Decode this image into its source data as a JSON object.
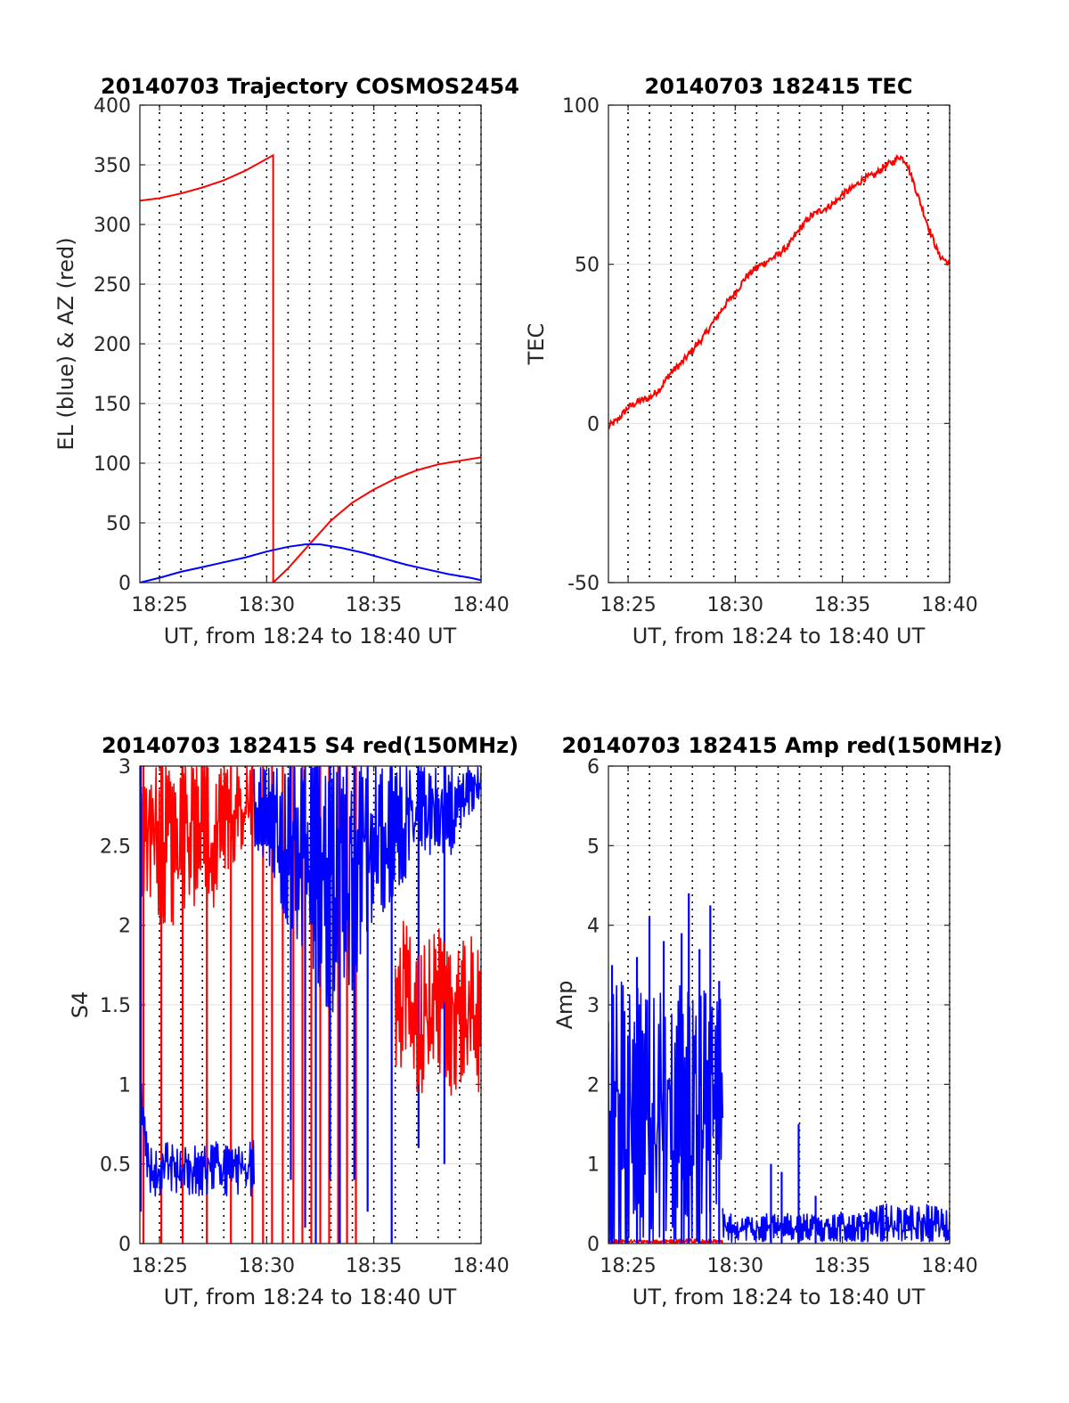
{
  "colors": {
    "red": "#ff0000",
    "blue": "#0000ff",
    "axis": "#262626",
    "grid": "#dedede"
  },
  "chart_data": [
    {
      "type": "line",
      "title": "20140703 Trajectory COSMOS2454",
      "xlabel": "UT, from 18:24 to 18:40 UT",
      "ylabel": "EL (blue) & AZ (red)",
      "xlim": [
        18.4014,
        18.6667
      ],
      "ylim": [
        0,
        400
      ],
      "x_ticks": [
        18.4167,
        18.5,
        18.5833,
        18.6667
      ],
      "x_tick_labels": [
        "18:25",
        "18:30",
        "18:35",
        "18:40"
      ],
      "y_ticks": [
        0,
        50,
        100,
        150,
        200,
        250,
        300,
        350,
        400
      ],
      "y_tick_labels": [
        "0",
        "50",
        "100",
        "150",
        "200",
        "250",
        "300",
        "350",
        "400"
      ],
      "grid": {
        "x": "dotted",
        "y": "solid"
      },
      "series": [
        {
          "color": "#ff0000",
          "style": "smooth",
          "x": [
            18.4014,
            18.4167,
            18.4333,
            18.45,
            18.4667,
            18.4833,
            18.505,
            18.5051,
            18.5167,
            18.5333,
            18.55,
            18.5667,
            18.5833,
            18.6,
            18.6167,
            18.6333,
            18.65,
            18.6667
          ],
          "y": [
            320,
            322,
            326,
            331,
            337,
            345,
            358,
            0,
            12,
            32,
            52,
            67,
            78,
            87,
            94,
            99,
            102,
            105
          ]
        },
        {
          "color": "#0000ff",
          "style": "smooth",
          "x": [
            18.4014,
            18.4167,
            18.4333,
            18.45,
            18.4667,
            18.4833,
            18.5,
            18.5167,
            18.53,
            18.5417,
            18.5583,
            18.575,
            18.5917,
            18.6083,
            18.625,
            18.6417,
            18.6583,
            18.6667
          ],
          "y": [
            0,
            4,
            9,
            13,
            17,
            21,
            26,
            30,
            32,
            32,
            29,
            25,
            20,
            15,
            11,
            7,
            4,
            2
          ]
        }
      ]
    },
    {
      "type": "line",
      "title": "20140703 182415 TEC",
      "xlabel": "UT, from 18:24 to 18:40 UT",
      "ylabel": "TEC",
      "xlim": [
        18.4014,
        18.6667
      ],
      "ylim": [
        -50,
        100
      ],
      "x_ticks": [
        18.4167,
        18.5,
        18.5833,
        18.6667
      ],
      "x_tick_labels": [
        "18:25",
        "18:30",
        "18:35",
        "18:40"
      ],
      "y_ticks": [
        -50,
        0,
        50,
        100
      ],
      "y_tick_labels": [
        "-50",
        "0",
        "50",
        "100"
      ],
      "grid": {
        "x": "dotted",
        "y": "solid"
      },
      "series": [
        {
          "color": "#ff0000",
          "style": "noisy",
          "x": [
            18.4014,
            18.4083,
            18.4167,
            18.425,
            18.4333,
            18.4417,
            18.45,
            18.4583,
            18.4667,
            18.475,
            18.4833,
            18.4917,
            18.5,
            18.5083,
            18.5167,
            18.525,
            18.5333,
            18.5417,
            18.55,
            18.5583,
            18.5667,
            18.5722,
            18.5792,
            18.5833,
            18.5917,
            18.6,
            18.6083,
            18.6167,
            18.6222,
            18.6278,
            18.6333,
            18.6417,
            18.65,
            18.6583,
            18.6667
          ],
          "y": [
            -1,
            1,
            5,
            7,
            8,
            11,
            16,
            19,
            23,
            27,
            32,
            37,
            41,
            46,
            49,
            51,
            53,
            56,
            61,
            65,
            67,
            68,
            70,
            72,
            74,
            77,
            78,
            81,
            82,
            84,
            82,
            72,
            62,
            53,
            50
          ]
        }
      ]
    },
    {
      "type": "line",
      "title": "20140703 182415 S4 red(150MHz)",
      "xlabel": "UT, from 18:24 to 18:40 UT",
      "ylabel": "S4",
      "xlim": [
        18.4014,
        18.6667
      ],
      "ylim": [
        0,
        3
      ],
      "x_ticks": [
        18.4167,
        18.5,
        18.5833,
        18.6667
      ],
      "x_tick_labels": [
        "18:25",
        "18:30",
        "18:35",
        "18:40"
      ],
      "y_ticks": [
        0,
        0.5,
        1,
        1.5,
        2,
        2.5,
        3
      ],
      "y_tick_labels": [
        "0",
        "0.5",
        "1",
        "1.5",
        "2",
        "2.5",
        "3"
      ],
      "grid": {
        "x": "dotted",
        "y": "solid"
      },
      "series": [
        {
          "color": "#ff0000",
          "style": "band",
          "x": [
            18.4014,
            18.4083,
            18.4167,
            18.425,
            18.4333,
            18.4417,
            18.45,
            18.4583,
            18.4667,
            18.475,
            18.4833,
            18.4903
          ],
          "lo": [
            2.2,
            2.1,
            2.0,
            2.0,
            1.9,
            2.1,
            2.2,
            2.1,
            2.3,
            2.4,
            2.5,
            2.6
          ],
          "hi": [
            3,
            3,
            3,
            3,
            3,
            3,
            3,
            3,
            3,
            3,
            3,
            3
          ]
        },
        {
          "color": "#ff0000",
          "style": "spikes",
          "x": [
            18.4042,
            18.4181,
            18.4347,
            18.4535,
            18.4722,
            18.4889,
            18.4972,
            18.5042,
            18.5125,
            18.5208,
            18.5278,
            18.5347,
            18.5417,
            18.5486,
            18.5556,
            18.5625,
            18.5694
          ],
          "lo": [
            0,
            0,
            0,
            0,
            0,
            0,
            0,
            0,
            0,
            0,
            0,
            0,
            0,
            0,
            0,
            0,
            0
          ],
          "hi": [
            3,
            3,
            3,
            3,
            3,
            3,
            3,
            3,
            3,
            3,
            3,
            3,
            3,
            3,
            3,
            3,
            3
          ]
        },
        {
          "color": "#0000ff",
          "style": "band",
          "x": [
            18.4014,
            18.4083,
            18.4167,
            18.425,
            18.4333,
            18.4417,
            18.45,
            18.4583,
            18.4667,
            18.475,
            18.4833,
            18.4903
          ],
          "lo": [
            0.9,
            0.3,
            0.3,
            0.3,
            0.32,
            0.3,
            0.3,
            0.32,
            0.3,
            0.3,
            0.3,
            0.3
          ],
          "hi": [
            1.1,
            0.6,
            0.6,
            0.65,
            0.6,
            0.62,
            0.6,
            0.65,
            0.62,
            0.6,
            0.62,
            0.65
          ]
        },
        {
          "color": "#0000ff",
          "style": "band",
          "x": [
            18.4903,
            18.5,
            18.5083,
            18.5167,
            18.525,
            18.5333,
            18.5417,
            18.55,
            18.5583,
            18.5667,
            18.575,
            18.5833,
            18.5917,
            18.6,
            18.6083,
            18.6167,
            18.625,
            18.6333,
            18.6417,
            18.65,
            18.6583,
            18.6667
          ],
          "lo": [
            2.5,
            2.4,
            2.2,
            2.0,
            1.9,
            1.8,
            1.6,
            1.4,
            1.7,
            1.5,
            1.9,
            2.0,
            2.1,
            2.2,
            2.3,
            2.4,
            2.3,
            2.5,
            2.4,
            2.6,
            2.7,
            2.8
          ],
          "hi": [
            3,
            3,
            3,
            3,
            3,
            3,
            3,
            3,
            3,
            3,
            3,
            3,
            3,
            3,
            3,
            3,
            3,
            3,
            3,
            3,
            3,
            3
          ]
        },
        {
          "color": "#0000ff",
          "style": "spikes",
          "x": [
            18.4021,
            18.5188,
            18.5299,
            18.5382,
            18.5493,
            18.5569,
            18.5681,
            18.5785,
            18.5972,
            18.6181,
            18.6382
          ],
          "lo": [
            0.2,
            0.4,
            0.1,
            0.0,
            0.4,
            0.0,
            0.4,
            0.2,
            0.0,
            0.6,
            0.5
          ],
          "hi": [
            3,
            3,
            3,
            3,
            3,
            3,
            3,
            3,
            3,
            3,
            3
          ]
        },
        {
          "color": "#ff0000",
          "style": "band",
          "x": [
            18.6,
            18.6083,
            18.6167,
            18.625,
            18.6333,
            18.6417,
            18.65,
            18.6583,
            18.6667
          ],
          "lo": [
            1.0,
            1.2,
            0.9,
            1.0,
            1.1,
            0.9,
            1.0,
            1.1,
            0.9
          ],
          "hi": [
            1.9,
            2.1,
            1.8,
            1.9,
            2.0,
            1.8,
            1.9,
            2.0,
            1.8
          ]
        }
      ]
    },
    {
      "type": "line",
      "title": "20140703 182415 Amp red(150MHz)",
      "xlabel": "UT, from 18:24 to 18:40 UT",
      "ylabel": "Amp",
      "xlim": [
        18.4014,
        18.6667
      ],
      "ylim": [
        0,
        6
      ],
      "x_ticks": [
        18.4167,
        18.5,
        18.5833,
        18.6667
      ],
      "x_tick_labels": [
        "18:25",
        "18:30",
        "18:35",
        "18:40"
      ],
      "y_ticks": [
        0,
        1,
        2,
        3,
        4,
        5,
        6
      ],
      "y_tick_labels": [
        "0",
        "1",
        "2",
        "3",
        "4",
        "5",
        "6"
      ],
      "grid": {
        "x": "dotted",
        "y": "solid"
      },
      "series": [
        {
          "color": "#ff0000",
          "style": "band",
          "x": [
            18.4014,
            18.4167,
            18.4333,
            18.45,
            18.4667,
            18.4833,
            18.4903
          ],
          "lo": [
            0,
            0,
            0,
            0,
            0,
            0,
            0
          ],
          "hi": [
            0.05,
            0.05,
            0.04,
            0.05,
            0.06,
            0.05,
            0.04
          ]
        },
        {
          "color": "#0000ff",
          "style": "band",
          "x": [
            18.4014,
            18.4083,
            18.4167,
            18.425,
            18.4333,
            18.4417,
            18.45,
            18.4583,
            18.4667,
            18.475,
            18.4833,
            18.4903
          ],
          "lo": [
            0,
            0,
            0,
            0,
            0,
            0,
            0,
            0,
            0,
            0,
            0,
            0
          ],
          "hi": [
            2.8,
            3.4,
            3.1,
            3.3,
            3.0,
            3.2,
            3.1,
            3.3,
            3.1,
            3.2,
            3.0,
            3.1
          ]
        },
        {
          "color": "#0000ff",
          "style": "spikes",
          "x": [
            18.4042,
            18.4236,
            18.4333,
            18.4444,
            18.4583,
            18.4639,
            18.4722,
            18.4806,
            18.4875,
            18.5278,
            18.5361,
            18.5493,
            18.5625
          ],
          "lo": [
            0,
            0,
            0,
            0,
            0,
            0,
            0,
            0,
            0,
            0,
            0,
            0,
            0
          ],
          "hi": [
            3.5,
            3.6,
            4.1,
            3.8,
            3.9,
            4.4,
            3.7,
            4.25,
            3.3,
            1.0,
            0.9,
            1.5,
            0.6
          ]
        },
        {
          "color": "#0000ff",
          "style": "band",
          "x": [
            18.4903,
            18.5,
            18.5083,
            18.5167,
            18.525,
            18.5333,
            18.5417,
            18.55,
            18.5583,
            18.5667,
            18.575,
            18.5833,
            18.5917,
            18.6,
            18.6083,
            18.6167,
            18.625,
            18.6333,
            18.6417,
            18.65,
            18.6583,
            18.6667
          ],
          "lo": [
            0,
            0.02,
            0.03,
            0.02,
            0.03,
            0.02,
            0.03,
            0.02,
            0.03,
            0.02,
            0.03,
            0.02,
            0.03,
            0.02,
            0.03,
            0.02,
            0.03,
            0.02,
            0.03,
            0.02,
            0.03,
            0.02
          ],
          "hi": [
            0.5,
            0.3,
            0.35,
            0.3,
            0.4,
            0.35,
            0.4,
            0.35,
            0.4,
            0.3,
            0.35,
            0.4,
            0.35,
            0.4,
            0.45,
            0.5,
            0.45,
            0.5,
            0.45,
            0.5,
            0.45,
            0.4
          ]
        }
      ]
    }
  ]
}
